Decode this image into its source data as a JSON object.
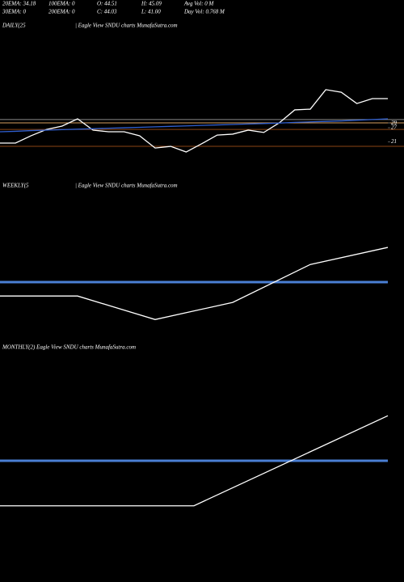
{
  "header": {
    "rows": [
      [
        "20EMA: 34.18",
        "100EMA: 0",
        "O: 44.51",
        "H: 45.09",
        "Avg Vol: 0 M"
      ],
      [
        "30EMA: 0",
        "200EMA: 0",
        "C: 44.03",
        "L: 41.00",
        "Day Vol: 0.768 M"
      ]
    ]
  },
  "chart_data": [
    {
      "type": "line",
      "title": "DAILY(25",
      "subtitle": "| Eagle  View  SNDU charts MunafaSutra.com",
      "ylim": [
        4,
        71
      ],
      "yticks": [
        29,
        27,
        21
      ],
      "levels": [
        {
          "value": 30.5,
          "color": "#8a8a8a"
        },
        {
          "value": 29.1,
          "color": "#d8a060"
        },
        {
          "value": 26.3,
          "color": "#8b4513"
        },
        {
          "value": 19.1,
          "color": "#8b4513"
        }
      ],
      "series": [
        {
          "name": "Price",
          "color": "#ffffff",
          "values": [
            20.5,
            20.5,
            23.6,
            26.3,
            27.7,
            30.8,
            26.0,
            25.3,
            25.3,
            23.6,
            18.4,
            19.1,
            16.7,
            20.2,
            23.9,
            24.3,
            26.0,
            25.0,
            29.1,
            34.6,
            34.9,
            43.2,
            42.1,
            37.3,
            39.4,
            39.4
          ]
        },
        {
          "name": "EMA",
          "color": "#2f5fd0",
          "values": [
            25.3,
            25.5,
            25.8,
            26.0,
            26.2,
            26.4,
            26.6,
            26.8,
            27.0,
            27.2,
            27.4,
            27.6,
            27.8,
            28.0,
            28.2,
            28.4,
            28.6,
            28.8,
            29.0,
            29.3,
            29.5,
            29.7,
            29.9,
            30.2,
            30.5,
            30.8
          ]
        }
      ]
    },
    {
      "type": "line",
      "title": "WEEKLY(5",
      "subtitle": "| Eagle  View  SNDU charts MunafaSutra.com",
      "ylim": [
        8,
        64
      ],
      "series": [
        {
          "name": "EMA",
          "color": "#4a7fd4",
          "values": [
            31,
            31,
            31,
            31,
            31,
            31
          ]
        },
        {
          "name": "Price",
          "color": "#ffffff",
          "values": [
            25.8,
            25.8,
            17,
            23.4,
            37.6,
            44
          ]
        }
      ]
    },
    {
      "type": "line",
      "title": "MONTHLY(2) Eagle  View  SNDU charts MunafaSutra.com",
      "ylim": [
        4,
        60
      ],
      "series": [
        {
          "name": "EMA",
          "color": "#4a7fd4",
          "values": [
            32,
            32,
            32
          ]
        },
        {
          "name": "Price",
          "color": "#ffffff",
          "values": [
            20,
            20,
            44
          ]
        }
      ]
    }
  ]
}
